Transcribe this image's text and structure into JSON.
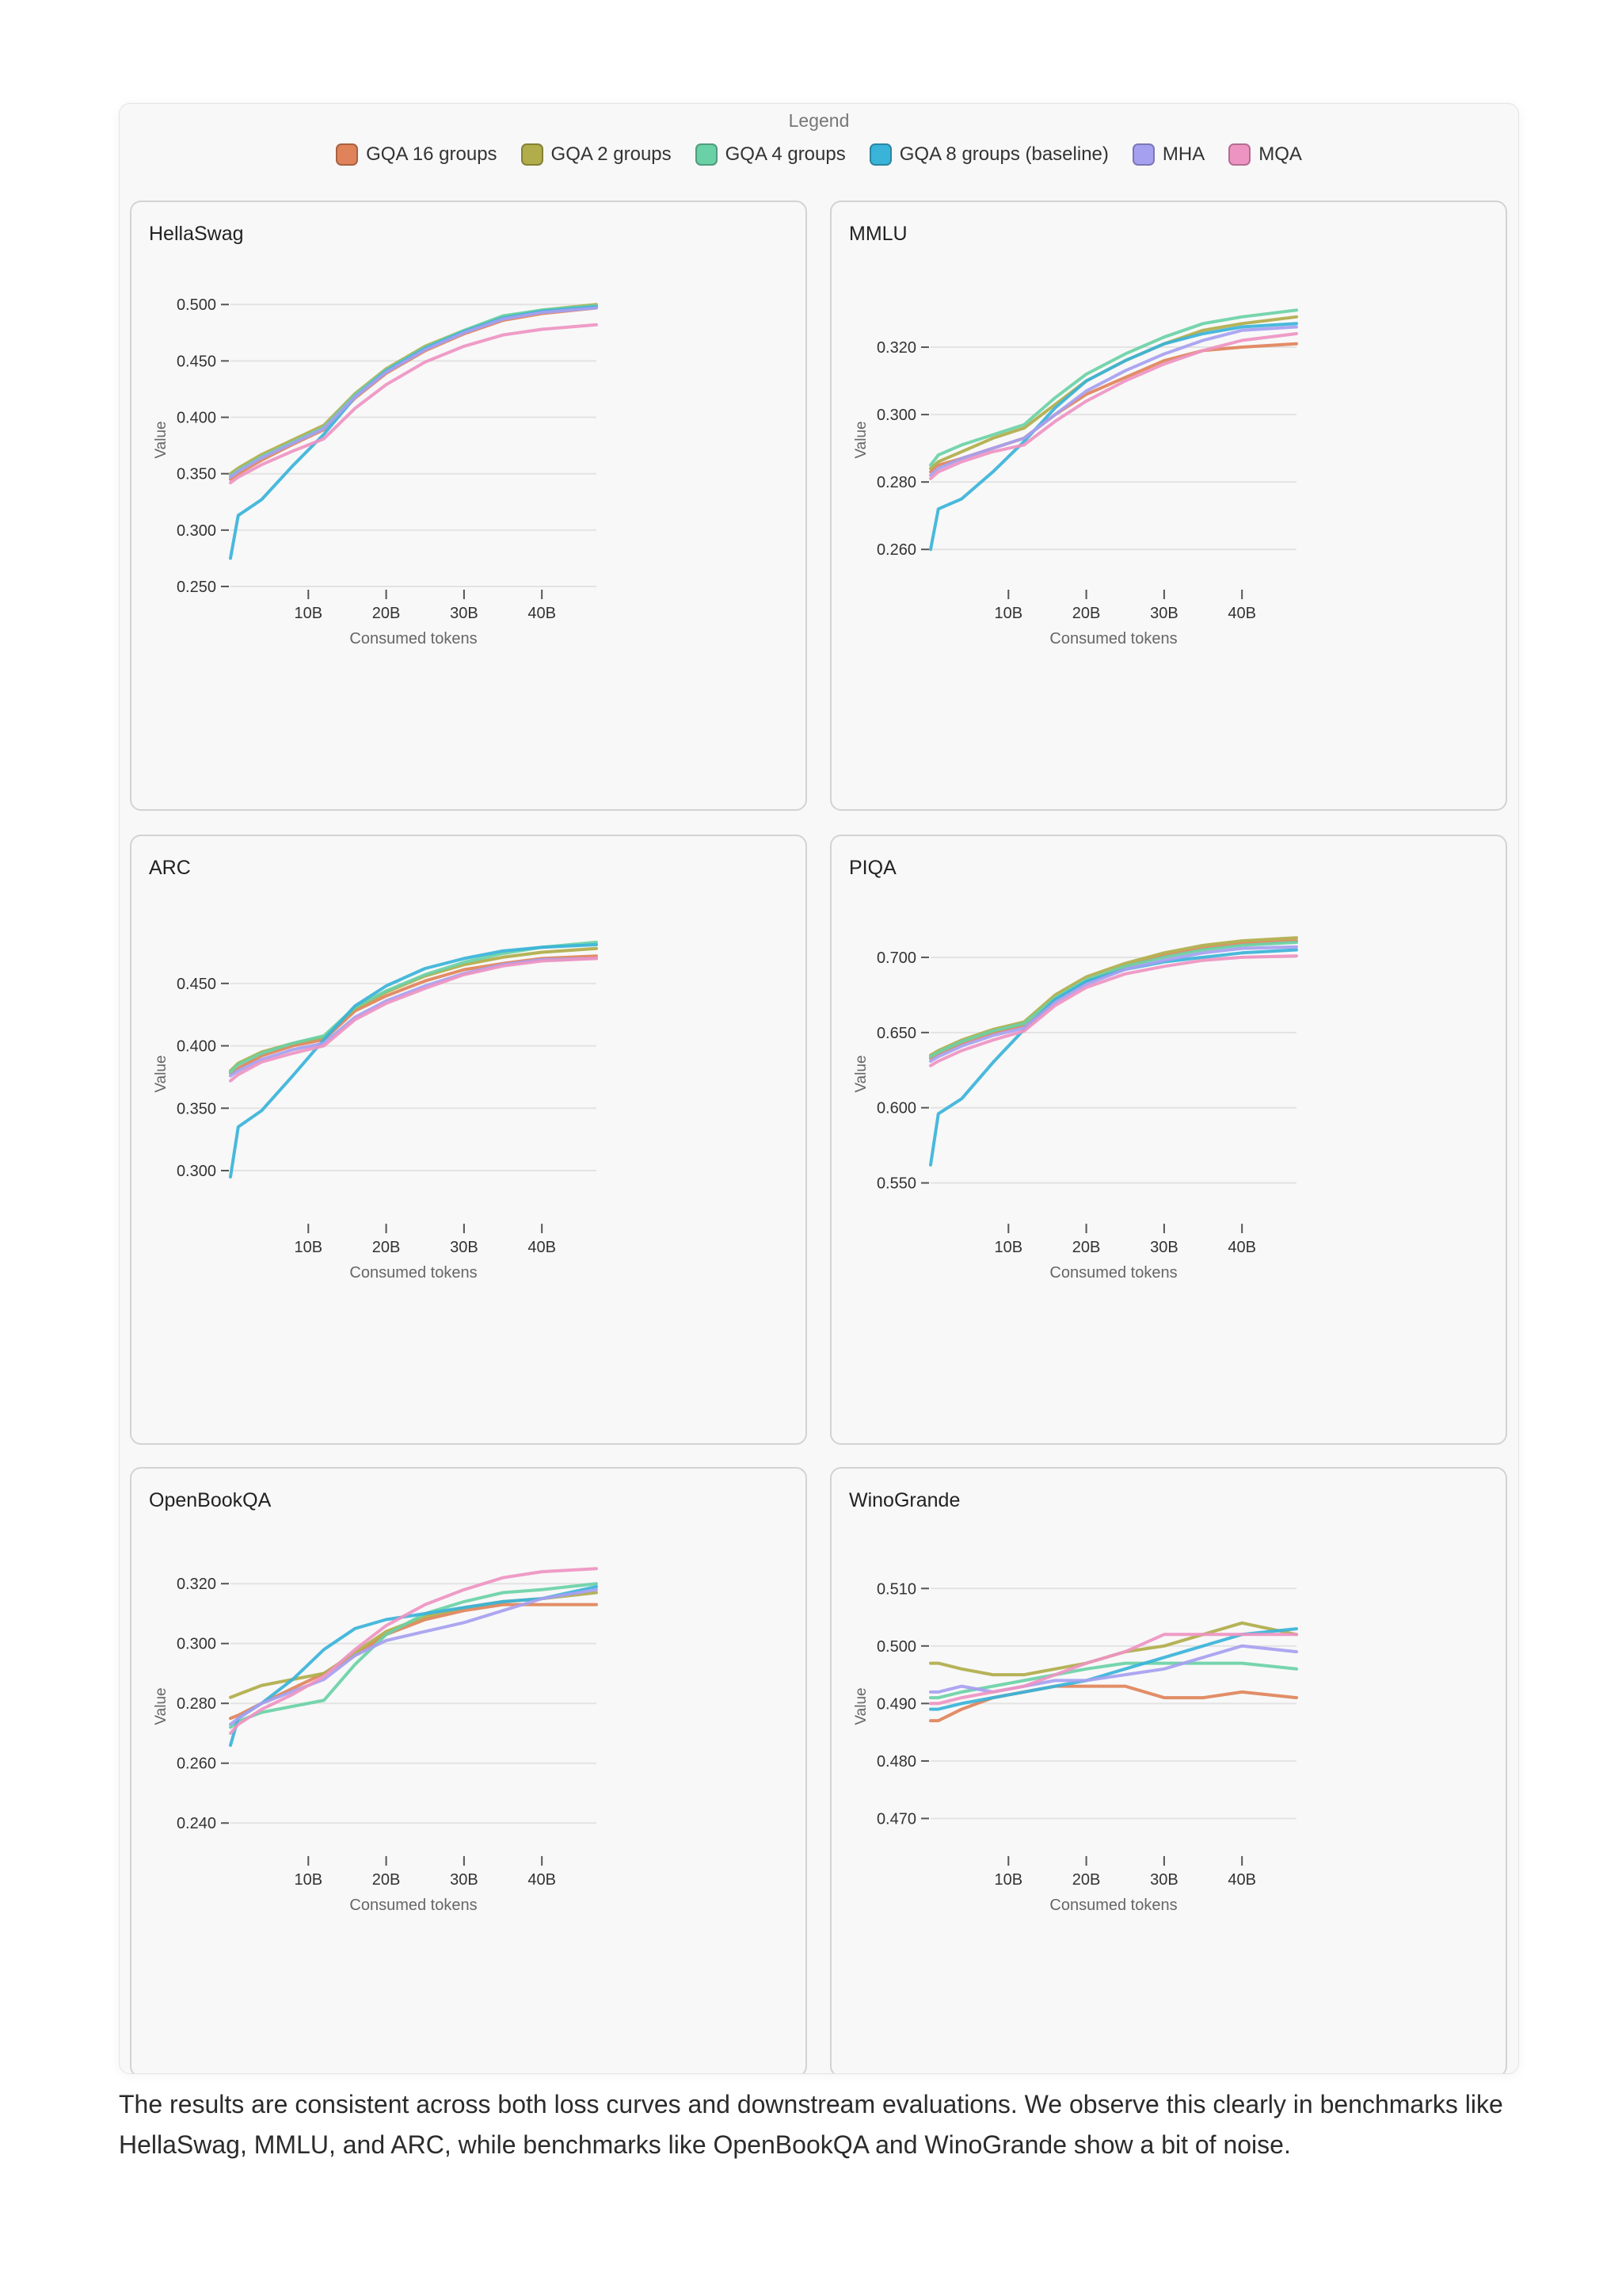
{
  "legend": {
    "title": "Legend",
    "items": [
      {
        "label": "GQA 16 groups",
        "color": "#e0835a"
      },
      {
        "label": "GQA 2 groups",
        "color": "#b0ad4a"
      },
      {
        "label": "GQA 4 groups",
        "color": "#6ad1a6"
      },
      {
        "label": "GQA 8 groups (baseline)",
        "color": "#3ab3d9"
      },
      {
        "label": "MHA",
        "color": "#a6a0f0"
      },
      {
        "label": "MQA",
        "color": "#ee94c2"
      }
    ]
  },
  "caption": "The results are consistent across both loss curves and downstream evaluations. We observe this clearly in benchmarks like HellaSwag, MMLU, and ARC, while benchmarks like OpenBookQA and WinoGrande show a bit of noise.",
  "chart_data": [
    {
      "type": "line",
      "title": "HellaSwag",
      "xlabel": "Consumed tokens",
      "ylabel": "Value",
      "xlim": [
        0,
        47
      ],
      "ylim": [
        0.25,
        0.51
      ],
      "xticks": [
        10,
        20,
        30,
        40
      ],
      "xtick_labels": [
        "10B",
        "20B",
        "30B",
        "40B"
      ],
      "yticks": [
        0.25,
        0.3,
        0.35,
        0.4,
        0.45,
        0.5
      ],
      "ytick_labels": [
        "0.250",
        "0.300",
        "0.350",
        "0.400",
        "0.450",
        "0.500"
      ],
      "x": [
        0,
        1,
        4,
        8,
        12,
        16,
        20,
        25,
        30,
        35,
        40,
        47
      ],
      "series": [
        {
          "name": "GQA 16 groups",
          "values": [
            0.345,
            0.35,
            0.362,
            0.376,
            0.389,
            0.417,
            0.439,
            0.459,
            0.474,
            0.486,
            0.492,
            0.497
          ]
        },
        {
          "name": "GQA 2 groups",
          "values": [
            0.35,
            0.355,
            0.367,
            0.38,
            0.393,
            0.421,
            0.443,
            0.463,
            0.477,
            0.489,
            0.495,
            0.5
          ]
        },
        {
          "name": "GQA 4 groups",
          "values": [
            0.348,
            0.353,
            0.365,
            0.378,
            0.391,
            0.42,
            0.442,
            0.462,
            0.477,
            0.49,
            0.495,
            0.499
          ]
        },
        {
          "name": "GQA 8 groups (baseline)",
          "values": [
            0.275,
            0.313,
            0.327,
            0.357,
            0.385,
            0.418,
            0.441,
            0.461,
            0.476,
            0.488,
            0.494,
            0.498
          ]
        },
        {
          "name": "MHA",
          "values": [
            0.347,
            0.352,
            0.364,
            0.377,
            0.39,
            0.418,
            0.44,
            0.46,
            0.475,
            0.487,
            0.493,
            0.497
          ]
        },
        {
          "name": "MQA",
          "values": [
            0.342,
            0.347,
            0.358,
            0.37,
            0.381,
            0.408,
            0.429,
            0.449,
            0.463,
            0.473,
            0.478,
            0.482
          ]
        }
      ]
    },
    {
      "type": "line",
      "title": "MMLU",
      "xlabel": "Consumed tokens",
      "ylabel": "Value",
      "xlim": [
        0,
        47
      ],
      "ylim": [
        0.249,
        0.336
      ],
      "xticks": [
        10,
        20,
        30,
        40
      ],
      "xtick_labels": [
        "10B",
        "20B",
        "30B",
        "40B"
      ],
      "yticks": [
        0.26,
        0.28,
        0.3,
        0.32
      ],
      "ytick_labels": [
        "0.260",
        "0.280",
        "0.300",
        "0.320"
      ],
      "x": [
        0,
        1,
        4,
        8,
        12,
        16,
        20,
        25,
        30,
        35,
        40,
        47
      ],
      "series": [
        {
          "name": "GQA 16 groups",
          "values": [
            0.283,
            0.285,
            0.287,
            0.29,
            0.293,
            0.3,
            0.306,
            0.311,
            0.316,
            0.319,
            0.32,
            0.321
          ]
        },
        {
          "name": "GQA 2 groups",
          "values": [
            0.284,
            0.286,
            0.289,
            0.293,
            0.296,
            0.303,
            0.31,
            0.316,
            0.321,
            0.325,
            0.327,
            0.329
          ]
        },
        {
          "name": "GQA 4 groups",
          "values": [
            0.285,
            0.288,
            0.291,
            0.294,
            0.297,
            0.305,
            0.312,
            0.318,
            0.323,
            0.327,
            0.329,
            0.331
          ]
        },
        {
          "name": "GQA 8 groups (baseline)",
          "values": [
            0.26,
            0.272,
            0.275,
            0.283,
            0.292,
            0.302,
            0.31,
            0.316,
            0.321,
            0.324,
            0.326,
            0.327
          ]
        },
        {
          "name": "MHA",
          "values": [
            0.282,
            0.284,
            0.287,
            0.29,
            0.293,
            0.3,
            0.307,
            0.313,
            0.318,
            0.322,
            0.325,
            0.326
          ]
        },
        {
          "name": "MQA",
          "values": [
            0.281,
            0.283,
            0.286,
            0.289,
            0.291,
            0.298,
            0.304,
            0.31,
            0.315,
            0.319,
            0.322,
            0.324
          ]
        }
      ]
    },
    {
      "type": "line",
      "title": "ARC",
      "xlabel": "Consumed tokens",
      "ylabel": "Value",
      "xlim": [
        0,
        47
      ],
      "ylim": [
        0.26,
        0.495
      ],
      "xticks": [
        10,
        20,
        30,
        40
      ],
      "xtick_labels": [
        "10B",
        "20B",
        "30B",
        "40B"
      ],
      "yticks": [
        0.3,
        0.35,
        0.4,
        0.45
      ],
      "ytick_labels": [
        "0.300",
        "0.350",
        "0.400",
        "0.450"
      ],
      "x": [
        0,
        1,
        4,
        8,
        12,
        16,
        20,
        25,
        30,
        35,
        40,
        47
      ],
      "series": [
        {
          "name": "GQA 16 groups",
          "values": [
            0.378,
            0.382,
            0.392,
            0.4,
            0.405,
            0.428,
            0.44,
            0.452,
            0.461,
            0.466,
            0.47,
            0.472
          ]
        },
        {
          "name": "GQA 2 groups",
          "values": [
            0.38,
            0.386,
            0.395,
            0.402,
            0.407,
            0.43,
            0.443,
            0.456,
            0.465,
            0.471,
            0.475,
            0.478
          ]
        },
        {
          "name": "GQA 4 groups",
          "values": [
            0.379,
            0.385,
            0.394,
            0.402,
            0.408,
            0.431,
            0.444,
            0.457,
            0.467,
            0.474,
            0.479,
            0.483
          ]
        },
        {
          "name": "GQA 8 groups (baseline)",
          "values": [
            0.295,
            0.335,
            0.348,
            0.376,
            0.405,
            0.432,
            0.448,
            0.462,
            0.47,
            0.476,
            0.479,
            0.481
          ]
        },
        {
          "name": "MHA",
          "values": [
            0.376,
            0.38,
            0.389,
            0.397,
            0.402,
            0.423,
            0.436,
            0.448,
            0.458,
            0.465,
            0.469,
            0.47
          ]
        },
        {
          "name": "MQA",
          "values": [
            0.372,
            0.377,
            0.387,
            0.394,
            0.4,
            0.421,
            0.434,
            0.446,
            0.457,
            0.464,
            0.468,
            0.47
          ]
        }
      ]
    },
    {
      "type": "line",
      "title": "PIQA",
      "xlabel": "Consumed tokens",
      "ylabel": "Value",
      "xlim": [
        0,
        47
      ],
      "ylim": [
        0.525,
        0.72
      ],
      "xticks": [
        10,
        20,
        30,
        40
      ],
      "xtick_labels": [
        "10B",
        "20B",
        "30B",
        "40B"
      ],
      "yticks": [
        0.55,
        0.6,
        0.65,
        0.7
      ],
      "ytick_labels": [
        "0.550",
        "0.600",
        "0.650",
        "0.700"
      ],
      "x": [
        0,
        1,
        4,
        8,
        12,
        16,
        20,
        25,
        30,
        35,
        40,
        47
      ],
      "series": [
        {
          "name": "GQA 16 groups",
          "values": [
            0.633,
            0.636,
            0.643,
            0.65,
            0.655,
            0.672,
            0.684,
            0.694,
            0.701,
            0.706,
            0.709,
            0.711
          ]
        },
        {
          "name": "GQA 2 groups",
          "values": [
            0.635,
            0.638,
            0.645,
            0.652,
            0.657,
            0.675,
            0.687,
            0.696,
            0.703,
            0.708,
            0.711,
            0.713
          ]
        },
        {
          "name": "GQA 4 groups",
          "values": [
            0.634,
            0.637,
            0.644,
            0.651,
            0.656,
            0.673,
            0.685,
            0.694,
            0.7,
            0.705,
            0.708,
            0.71
          ]
        },
        {
          "name": "GQA 8 groups (baseline)",
          "values": [
            0.562,
            0.596,
            0.606,
            0.63,
            0.652,
            0.672,
            0.684,
            0.692,
            0.697,
            0.7,
            0.703,
            0.705
          ]
        },
        {
          "name": "MHA",
          "values": [
            0.631,
            0.634,
            0.641,
            0.648,
            0.653,
            0.67,
            0.682,
            0.692,
            0.698,
            0.703,
            0.706,
            0.707
          ]
        },
        {
          "name": "MQA",
          "values": [
            0.628,
            0.631,
            0.638,
            0.645,
            0.651,
            0.668,
            0.68,
            0.689,
            0.694,
            0.698,
            0.7,
            0.701
          ]
        }
      ]
    },
    {
      "type": "line",
      "title": "OpenBookQA",
      "xlabel": "Consumed tokens",
      "ylabel": "Value",
      "xlim": [
        0,
        47
      ],
      "ylim": [
        0.23,
        0.328
      ],
      "xticks": [
        10,
        20,
        30,
        40
      ],
      "xtick_labels": [
        "10B",
        "20B",
        "30B",
        "40B"
      ],
      "yticks": [
        0.24,
        0.26,
        0.28,
        0.3,
        0.32
      ],
      "ytick_labels": [
        "0.240",
        "0.260",
        "0.280",
        "0.300",
        "0.320"
      ],
      "x": [
        0,
        1,
        4,
        8,
        12,
        16,
        20,
        25,
        30,
        35,
        40,
        47
      ],
      "series": [
        {
          "name": "GQA 16 groups",
          "values": [
            0.275,
            0.276,
            0.28,
            0.285,
            0.29,
            0.296,
            0.303,
            0.308,
            0.311,
            0.313,
            0.313,
            0.313
          ]
        },
        {
          "name": "GQA 2 groups",
          "values": [
            0.282,
            0.283,
            0.286,
            0.288,
            0.29,
            0.297,
            0.304,
            0.309,
            0.312,
            0.314,
            0.315,
            0.317
          ]
        },
        {
          "name": "GQA 4 groups",
          "values": [
            0.272,
            0.274,
            0.277,
            0.279,
            0.281,
            0.293,
            0.303,
            0.31,
            0.314,
            0.317,
            0.318,
            0.32
          ]
        },
        {
          "name": "GQA 8 groups (baseline)",
          "values": [
            0.266,
            0.275,
            0.28,
            0.288,
            0.298,
            0.305,
            0.308,
            0.31,
            0.312,
            0.314,
            0.315,
            0.319
          ]
        },
        {
          "name": "MHA",
          "values": [
            0.273,
            0.275,
            0.28,
            0.284,
            0.288,
            0.296,
            0.301,
            0.304,
            0.307,
            0.311,
            0.315,
            0.318
          ]
        },
        {
          "name": "MQA",
          "values": [
            0.27,
            0.273,
            0.278,
            0.283,
            0.289,
            0.298,
            0.306,
            0.313,
            0.318,
            0.322,
            0.324,
            0.325
          ]
        }
      ]
    },
    {
      "type": "line",
      "title": "WinoGrande",
      "xlabel": "Consumed tokens",
      "ylabel": "Value",
      "xlim": [
        0,
        47
      ],
      "ylim": [
        0.464,
        0.515
      ],
      "xticks": [
        10,
        20,
        30,
        40
      ],
      "xtick_labels": [
        "10B",
        "20B",
        "30B",
        "40B"
      ],
      "yticks": [
        0.47,
        0.48,
        0.49,
        0.5,
        0.51
      ],
      "ytick_labels": [
        "0.470",
        "0.480",
        "0.490",
        "0.500",
        "0.510"
      ],
      "x": [
        0,
        1,
        4,
        8,
        12,
        16,
        20,
        25,
        30,
        35,
        40,
        47
      ],
      "series": [
        {
          "name": "GQA 16 groups",
          "values": [
            0.487,
            0.487,
            0.489,
            0.491,
            0.492,
            0.493,
            0.493,
            0.493,
            0.491,
            0.491,
            0.492,
            0.491
          ]
        },
        {
          "name": "GQA 2 groups",
          "values": [
            0.497,
            0.497,
            0.496,
            0.495,
            0.495,
            0.496,
            0.497,
            0.499,
            0.5,
            0.502,
            0.504,
            0.502
          ]
        },
        {
          "name": "GQA 4 groups",
          "values": [
            0.491,
            0.491,
            0.492,
            0.493,
            0.494,
            0.495,
            0.496,
            0.497,
            0.497,
            0.497,
            0.497,
            0.496
          ]
        },
        {
          "name": "GQA 8 groups (baseline)",
          "values": [
            0.489,
            0.489,
            0.49,
            0.491,
            0.492,
            0.493,
            0.494,
            0.496,
            0.498,
            0.5,
            0.502,
            0.503
          ]
        },
        {
          "name": "MHA",
          "values": [
            0.492,
            0.492,
            0.493,
            0.492,
            0.493,
            0.494,
            0.494,
            0.495,
            0.496,
            0.498,
            0.5,
            0.499
          ]
        },
        {
          "name": "MQA",
          "values": [
            0.49,
            0.49,
            0.491,
            0.492,
            0.493,
            0.495,
            0.497,
            0.499,
            0.502,
            0.502,
            0.502,
            0.502
          ]
        }
      ]
    }
  ]
}
